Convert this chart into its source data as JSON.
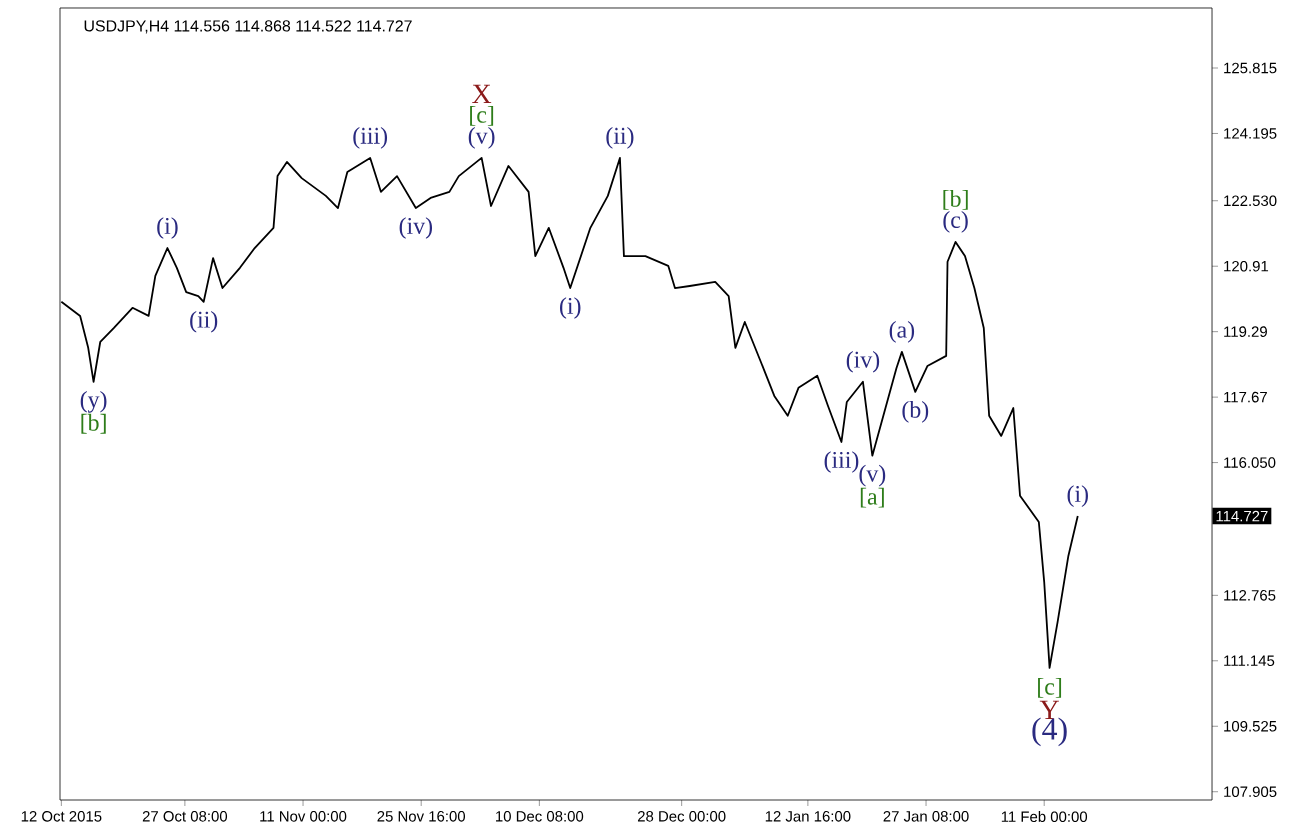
{
  "chart_data": {
    "type": "line",
    "title": "USDJPY,H4  114.556 114.868 114.522 114.727",
    "x": [
      "2015-10-12T00:00",
      "2015-10-14T08:00",
      "2015-10-15T08:00",
      "2015-10-16T00:00",
      "2015-10-16T20:00",
      "2015-10-18T12:00",
      "2015-10-20T20:00",
      "2015-10-22T20:00",
      "2015-10-23T16:00",
      "2015-10-25T04:00",
      "2015-10-26T08:00",
      "2015-10-27T12:00",
      "2015-10-29T00:00",
      "2015-10-29T16:00",
      "2015-10-30T20:00",
      "2015-11-01T00:00",
      "2015-11-03T04:00",
      "2015-11-05T00:00",
      "2015-11-07T08:00",
      "2015-11-07T20:00",
      "2015-11-09T00:00",
      "2015-11-10T20:00",
      "2015-11-13T20:00",
      "2015-11-15T08:00",
      "2015-11-16T12:00",
      "2015-11-19T08:00",
      "2015-11-20T16:00",
      "2015-11-22T16:00",
      "2015-11-25T00:00",
      "2015-11-26T20:00",
      "2015-11-29T04:00",
      "2015-11-30T08:00",
      "2015-12-03T04:00",
      "2015-12-04T08:00",
      "2015-12-06T12:00",
      "2015-12-09T00:00",
      "2015-12-09T20:00",
      "2015-12-11T12:00",
      "2015-12-13T08:00",
      "2015-12-14T04:00",
      "2015-12-16T16:00",
      "2015-12-18T20:00",
      "2015-12-20T08:00",
      "2015-12-20T20:00",
      "2015-12-23T12:00",
      "2015-12-26T08:00",
      "2015-12-27T04:00",
      "2015-12-29T00:00",
      "2016-01-01T04:00",
      "2016-01-02T20:00",
      "2016-01-03T16:00",
      "2016-01-04T20:00",
      "2016-01-06T20:00",
      "2016-01-08T12:00",
      "2016-01-10T04:00",
      "2016-01-11T12:00",
      "2016-01-13T20:00",
      "2016-01-15T04:00",
      "2016-01-16T20:00",
      "2016-01-17T12:00",
      "2016-01-19T12:00",
      "2016-01-20T16:00",
      "2016-01-23T16:00",
      "2016-01-24T08:00",
      "2016-01-26T00:00",
      "2016-01-27T12:00",
      "2016-01-29T20:00",
      "2016-01-30T00:00",
      "2016-01-31T00:00",
      "2016-02-01T04:00",
      "2016-02-02T08:00",
      "2016-02-03T12:00",
      "2016-02-04T04:00",
      "2016-02-05T16:00",
      "2016-02-07T04:00",
      "2016-02-08T00:00",
      "2016-02-10T08:00",
      "2016-02-11T00:00",
      "2016-02-11T16:00",
      "2016-02-12T16:00",
      "2016-02-14T00:00",
      "2016-02-15T04:00"
    ],
    "series": [
      {
        "color": "#000000",
        "values": [
          120.03,
          119.68,
          118.89,
          118.05,
          119.04,
          119.38,
          119.88,
          119.68,
          120.67,
          121.36,
          120.87,
          120.27,
          120.17,
          120.03,
          121.11,
          120.37,
          120.87,
          121.36,
          121.86,
          123.14,
          123.49,
          123.09,
          122.65,
          122.35,
          123.24,
          123.59,
          122.75,
          123.14,
          122.35,
          122.6,
          122.75,
          123.14,
          123.59,
          122.4,
          123.39,
          122.75,
          121.16,
          121.86,
          120.87,
          120.37,
          121.86,
          122.65,
          123.59,
          121.16,
          121.16,
          120.92,
          120.37,
          120.42,
          120.52,
          120.17,
          118.89,
          119.53,
          118.54,
          117.7,
          117.21,
          117.9,
          118.2,
          117.45,
          116.56,
          117.55,
          118.05,
          116.22,
          118.39,
          118.79,
          117.8,
          118.44,
          118.69,
          121.02,
          121.51,
          121.16,
          120.37,
          119.38,
          117.21,
          116.71,
          117.4,
          115.23,
          114.58,
          113.1,
          110.97,
          112.11,
          113.74,
          114.727
        ]
      }
    ],
    "xlim": [
      "2015-10-11T20:00",
      "2016-03-02T20:00"
    ],
    "ylim": [
      107.7,
      127.3
    ],
    "xticks": [
      {
        "value": "2015-10-12T00:00",
        "label": "12 Oct 2015"
      },
      {
        "value": "2015-10-27T08:00",
        "label": "27 Oct 08:00"
      },
      {
        "value": "2015-11-11T00:00",
        "label": "11 Nov 00:00"
      },
      {
        "value": "2015-11-25T16:00",
        "label": "25 Nov 16:00"
      },
      {
        "value": "2015-12-10T08:00",
        "label": "10 Dec 08:00"
      },
      {
        "value": "2015-12-28T00:00",
        "label": "28 Dec 00:00"
      },
      {
        "value": "2016-01-12T16:00",
        "label": "12 Jan 16:00"
      },
      {
        "value": "2016-01-27T08:00",
        "label": "27 Jan 08:00"
      },
      {
        "value": "2016-02-11T00:00",
        "label": "11 Feb 00:00"
      }
    ],
    "yticks": [
      125.815,
      124.195,
      {
        "value": 122.53,
        "label": "122.530"
      },
      120.91,
      119.29,
      117.67,
      {
        "value": 116.05,
        "label": "116.050"
      },
      112.765,
      111.145,
      109.525,
      107.905
    ],
    "annotations": [
      {
        "text": "(y)",
        "x": "2015-10-16T00:00",
        "y": 118.05
      },
      {
        "text": "[b]",
        "x": "2015-10-16T00:00",
        "y": 118.05
      },
      {
        "text": "(i)",
        "x": "2015-10-25T04:00",
        "y": 121.36
      },
      {
        "text": "(ii)",
        "x": "2015-10-29T16:00",
        "y": 120.03
      },
      {
        "text": "(iii)",
        "x": "2015-11-19T08:00",
        "y": 123.59
      },
      {
        "text": "(iv)",
        "x": "2015-11-25T00:00",
        "y": 122.35
      },
      {
        "text": "X",
        "x": "2015-12-03T04:00",
        "y": 123.59
      },
      {
        "text": "[c]",
        "x": "2015-12-03T04:00",
        "y": 123.59
      },
      {
        "text": "(v)",
        "x": "2015-12-03T04:00",
        "y": 123.59
      },
      {
        "text": "(ii)",
        "x": "2015-12-20T08:00",
        "y": 123.59
      },
      {
        "text": "(i)",
        "x": "2015-12-14T04:00",
        "y": 120.37
      },
      {
        "text": "(iv)",
        "x": "2016-01-19T12:00",
        "y": 118.05
      },
      {
        "text": "(a)",
        "x": "2016-01-24T08:00",
        "y": 118.79
      },
      {
        "text": "(b)",
        "x": "2016-01-26T00:00",
        "y": 117.8
      },
      {
        "text": "(iii)",
        "x": "2016-01-16T20:00",
        "y": 116.56
      },
      {
        "text": "(v)",
        "x": "2016-01-20T16:00",
        "y": 116.22
      },
      {
        "text": "[a]",
        "x": "2016-01-20T16:00",
        "y": 116.22
      },
      {
        "text": "[b]",
        "x": "2016-01-31T00:00",
        "y": 121.51
      },
      {
        "text": "(c)",
        "x": "2016-01-31T00:00",
        "y": 121.51
      },
      {
        "text": "(i)",
        "x": "2016-02-15T04:00",
        "y": 114.727
      },
      {
        "text": "[c]",
        "x": "2016-02-11T16:00",
        "y": 110.97
      },
      {
        "text": "Y",
        "x": "2016-02-11T16:00",
        "y": 110.97
      },
      {
        "text": "(4)",
        "x": "2016-02-11T16:00",
        "y": 110.97
      },
      "114.727"
    ]
  }
}
